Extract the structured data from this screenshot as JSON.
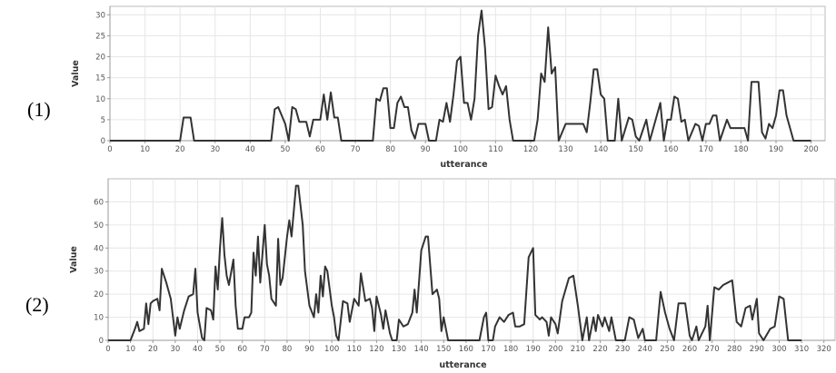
{
  "chart_data": [
    {
      "type": "line",
      "panel_label": "(1)",
      "x_label": "utterance",
      "y_label": "Value",
      "grid": true,
      "xlim": [
        0,
        204
      ],
      "ylim": [
        0,
        32
      ],
      "xticks": [
        0,
        10,
        20,
        30,
        40,
        50,
        60,
        70,
        80,
        90,
        100,
        110,
        120,
        130,
        140,
        150,
        160,
        170,
        180,
        190,
        200
      ],
      "yticks": [
        0,
        5,
        10,
        15,
        20,
        25,
        30
      ],
      "x": [
        0,
        20,
        21,
        23,
        24,
        46,
        47,
        48,
        50,
        51,
        52,
        53,
        54,
        56,
        57,
        58,
        60,
        61,
        62,
        63,
        64,
        65,
        66,
        75,
        76,
        77,
        78,
        79,
        80,
        81,
        82,
        83,
        84,
        85,
        86,
        87,
        88,
        90,
        91,
        93,
        94,
        95,
        96,
        97,
        98,
        99,
        100,
        101,
        102,
        103,
        104,
        105,
        106,
        107,
        108,
        109,
        110,
        111,
        112,
        113,
        114,
        115,
        121,
        122,
        123,
        124,
        125,
        126,
        127,
        128,
        130,
        131,
        135,
        136,
        137,
        138,
        139,
        140,
        141,
        142,
        144,
        145,
        146,
        148,
        149,
        150,
        151,
        153,
        154,
        157,
        158,
        159,
        160,
        161,
        162,
        163,
        164,
        165,
        167,
        168,
        169,
        170,
        171,
        172,
        173,
        174,
        176,
        177,
        179,
        181,
        182,
        183,
        184,
        185,
        186,
        187,
        188,
        189,
        190,
        191,
        192,
        193,
        194,
        195,
        200
      ],
      "series": [
        {
          "color": "#333333",
          "values": [
            0,
            0,
            5.5,
            5.5,
            0,
            0,
            7.5,
            8,
            4,
            0,
            8,
            7.5,
            4.5,
            4.5,
            1,
            5,
            5,
            11,
            5,
            11.5,
            5.5,
            5.5,
            0,
            0,
            10,
            9.5,
            12.5,
            12.5,
            3,
            3,
            9,
            10.5,
            8,
            8,
            2.5,
            0.5,
            4,
            4,
            0,
            0,
            5,
            4.5,
            9,
            4.5,
            11,
            19,
            20,
            9,
            9,
            5,
            10,
            25,
            31,
            22,
            7.5,
            8,
            15.5,
            13,
            11,
            13,
            5,
            0,
            0,
            5,
            16,
            14,
            27,
            16,
            17.5,
            0,
            4,
            4,
            4,
            2,
            9,
            17,
            17,
            11,
            10,
            0,
            0,
            10,
            0,
            5.5,
            5,
            1,
            0,
            5,
            0,
            9,
            0,
            5,
            5,
            10.5,
            10,
            4.5,
            5,
            0,
            4,
            3.5,
            0,
            4,
            4,
            6,
            6,
            0,
            5,
            3,
            3,
            3,
            0,
            14,
            14,
            14,
            2,
            0.5,
            4,
            3,
            6,
            12,
            12,
            6,
            3,
            0,
            0
          ]
        }
      ]
    },
    {
      "type": "line",
      "panel_label": "(2)",
      "x_label": "utterance",
      "y_label": "Value",
      "grid": true,
      "xlim": [
        0,
        325
      ],
      "ylim": [
        0,
        70
      ],
      "xticks": [
        0,
        10,
        20,
        30,
        40,
        50,
        60,
        70,
        80,
        90,
        100,
        110,
        120,
        130,
        140,
        150,
        160,
        170,
        180,
        190,
        200,
        210,
        220,
        230,
        240,
        250,
        260,
        270,
        280,
        290,
        300,
        310,
        320
      ],
      "yticks": [
        0,
        10,
        20,
        30,
        40,
        50,
        60
      ],
      "x": [
        0,
        10,
        12,
        13,
        14,
        16,
        17,
        18,
        19,
        20,
        22,
        23,
        24,
        26,
        28,
        30,
        31,
        32,
        34,
        36,
        38,
        39,
        40,
        42,
        43,
        44,
        46,
        47,
        48,
        49,
        50,
        51,
        52,
        53,
        54,
        56,
        57,
        58,
        60,
        61,
        63,
        64,
        65,
        66,
        67,
        68,
        70,
        71,
        72,
        73,
        75,
        76,
        77,
        78,
        80,
        81,
        82,
        84,
        85,
        87,
        88,
        90,
        92,
        93,
        94,
        95,
        96,
        97,
        98,
        100,
        101,
        102,
        103,
        105,
        107,
        108,
        110,
        112,
        113,
        115,
        117,
        118,
        119,
        120,
        122,
        123,
        124,
        126,
        127,
        129,
        130,
        132,
        134,
        136,
        137,
        138,
        140,
        142,
        143,
        145,
        147,
        148,
        149,
        150,
        152,
        166,
        168,
        169,
        170,
        172,
        173,
        175,
        177,
        179,
        181,
        182,
        184,
        186,
        188,
        190,
        191,
        193,
        194,
        196,
        197,
        198,
        200,
        201,
        203,
        206,
        208,
        210,
        212,
        214,
        215,
        217,
        218,
        219,
        221,
        222,
        224,
        225,
        227,
        231,
        233,
        235,
        237,
        239,
        240,
        245,
        247,
        249,
        251,
        253,
        255,
        258,
        260,
        261,
        263,
        264,
        267,
        268,
        269,
        271,
        273,
        275,
        277,
        279,
        281,
        283,
        285,
        287,
        288,
        290,
        291,
        293,
        296,
        298,
        300,
        302,
        304,
        310
      ],
      "series": [
        {
          "color": "#333333",
          "values": [
            0,
            0,
            5,
            8,
            4,
            5,
            16,
            7,
            16,
            17,
            18,
            13,
            31,
            25,
            18,
            2,
            10,
            5,
            13,
            19,
            20,
            31,
            12,
            1,
            0,
            14,
            13,
            9,
            32,
            22,
            40,
            53,
            37,
            28,
            24,
            35,
            15,
            5,
            5,
            10,
            10,
            12,
            38,
            28,
            45,
            25,
            50,
            33,
            28,
            18,
            15,
            44,
            24,
            27,
            45,
            52,
            45,
            67,
            67,
            50,
            30,
            15,
            10,
            20,
            12,
            28,
            19,
            32,
            30,
            15,
            10,
            2,
            0,
            17,
            16,
            8,
            18,
            15,
            29,
            17,
            18,
            14,
            4,
            19,
            11,
            5,
            13,
            3,
            0,
            0,
            9,
            6,
            7,
            12,
            22,
            12,
            39,
            45,
            45,
            20,
            22,
            18,
            4,
            10,
            0,
            0,
            10,
            12,
            0,
            0,
            6,
            10,
            8,
            11,
            12,
            6,
            6,
            7,
            36,
            40,
            11,
            9,
            10,
            8,
            2,
            10,
            7,
            3,
            17,
            27,
            28,
            15,
            0,
            10,
            0,
            10,
            4,
            11,
            6,
            10,
            4,
            10,
            0,
            0,
            10,
            9,
            1,
            5,
            0,
            0,
            21,
            12,
            5,
            0,
            16,
            16,
            2,
            0,
            6,
            0,
            6,
            15,
            0,
            23,
            22,
            24,
            25,
            26,
            8,
            6,
            14,
            15,
            9,
            18,
            3,
            0,
            5,
            6,
            19,
            18,
            0,
            0
          ]
        }
      ]
    }
  ]
}
